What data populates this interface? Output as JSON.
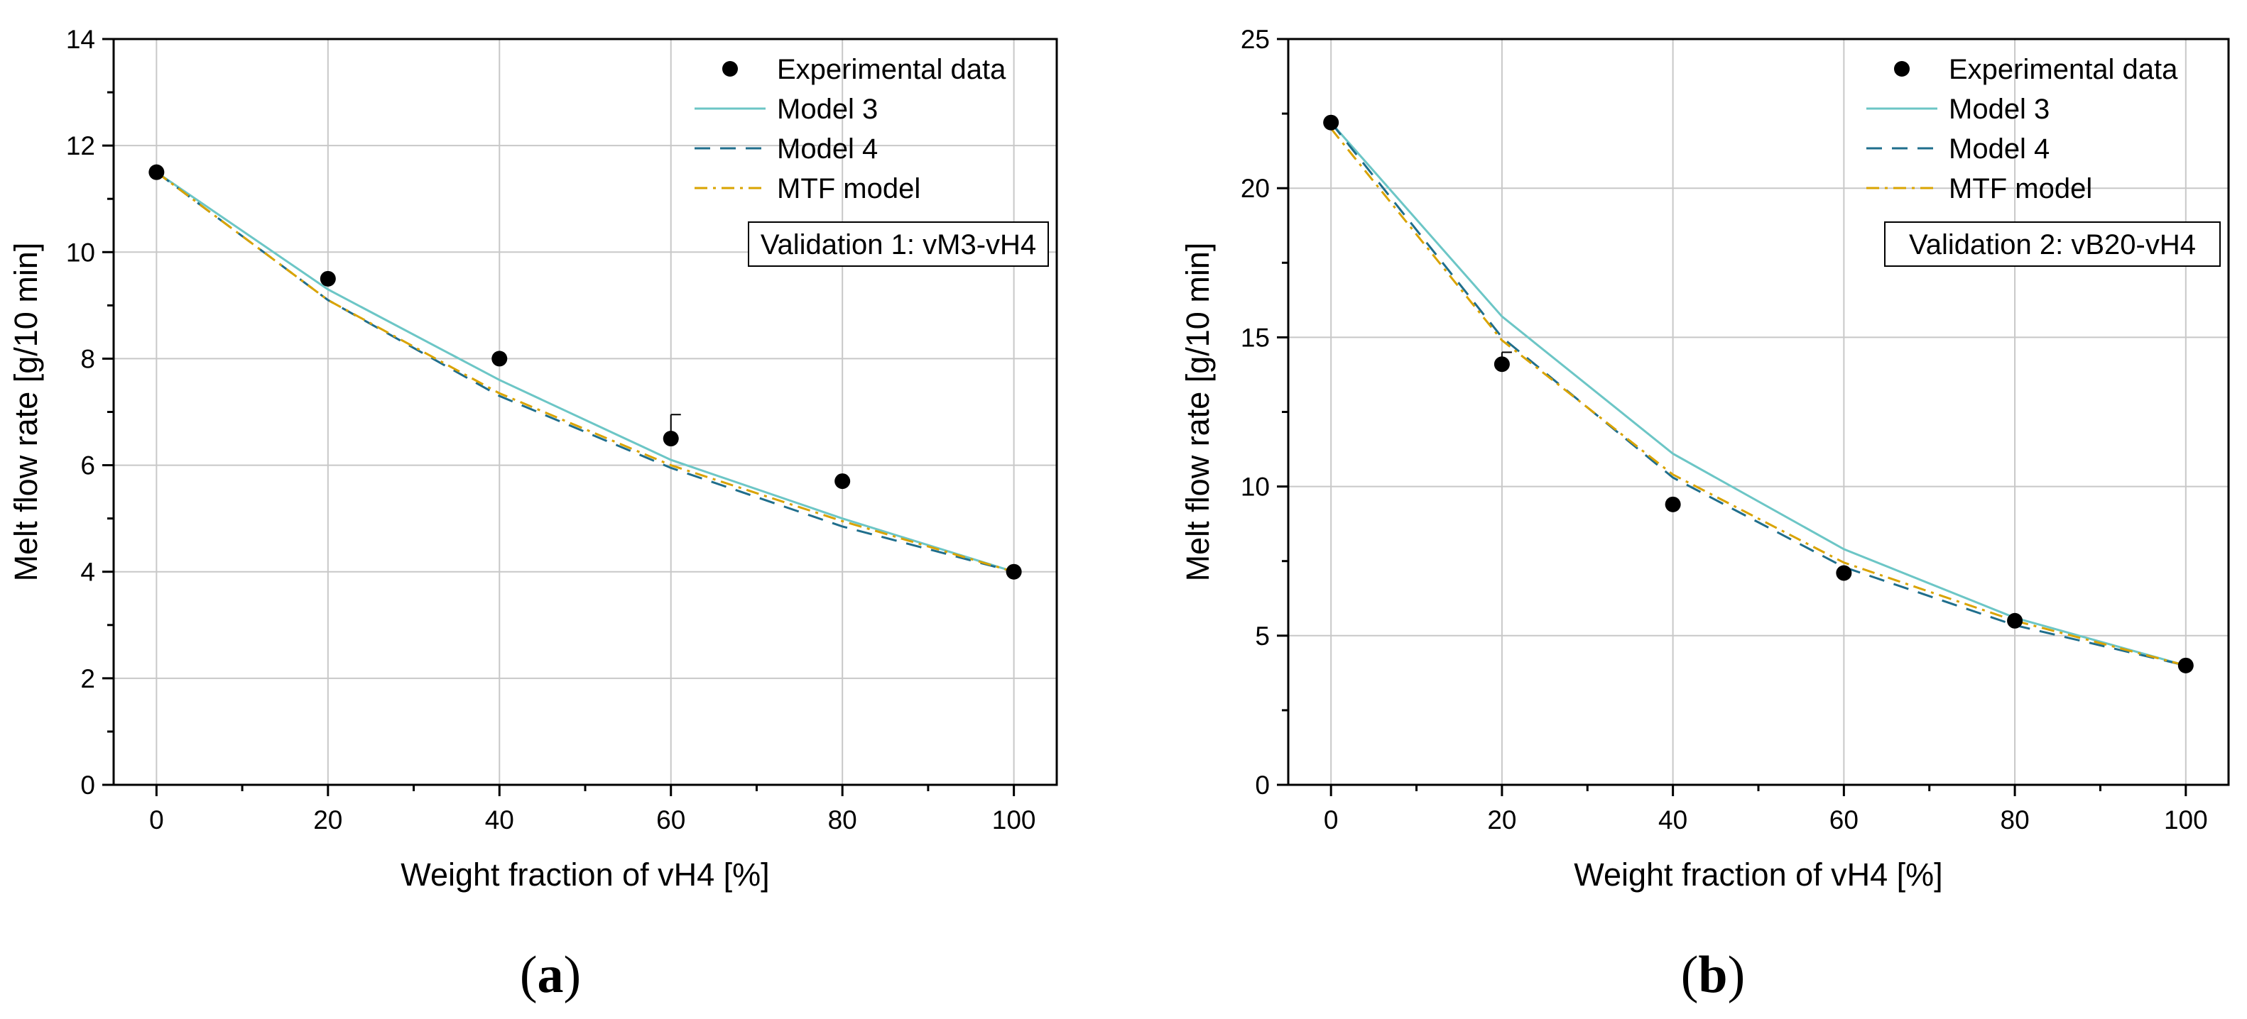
{
  "chart_data": [
    {
      "type": "line",
      "panel_label_open": "(",
      "panel_label_letter": "a",
      "panel_label_close": ")",
      "xlabel": "Weight fraction of vH4 [%]",
      "ylabel": "Melt flow rate [g/10 min]",
      "xlim": [
        -5,
        105
      ],
      "ylim": [
        0,
        14
      ],
      "xticks": [
        0,
        20,
        40,
        60,
        80,
        100
      ],
      "yticks": [
        0,
        2,
        4,
        6,
        8,
        10,
        12,
        14
      ],
      "grid": true,
      "legend_position": "top-right",
      "annotation": "Validation 1: vM3-vH4",
      "x": [
        0,
        20,
        40,
        60,
        80,
        100
      ],
      "series": [
        {
          "name": "Experimental data",
          "style": "scatter",
          "color": "#000000",
          "values": [
            11.5,
            9.5,
            8.0,
            6.5,
            5.7,
            4.0
          ],
          "errors": [
            0.05,
            0.1,
            0.05,
            0.45,
            0.05,
            0.05
          ]
        },
        {
          "name": "Model 3",
          "style": "solid",
          "color": "#6cc6c6",
          "values": [
            11.5,
            9.3,
            7.6,
            6.1,
            5.0,
            4.0
          ]
        },
        {
          "name": "Model 4",
          "style": "dashed",
          "color": "#1f6e8c",
          "values": [
            11.5,
            9.1,
            7.3,
            5.95,
            4.85,
            4.0
          ]
        },
        {
          "name": "MTF model",
          "style": "dashdot",
          "color": "#d9a300",
          "values": [
            11.5,
            9.1,
            7.35,
            6.0,
            4.95,
            4.0
          ]
        }
      ]
    },
    {
      "type": "line",
      "panel_label_open": "(",
      "panel_label_letter": "b",
      "panel_label_close": ")",
      "xlabel": "Weight fraction of vH4 [%]",
      "ylabel": "Melt flow rate [g/10 min]",
      "xlim": [
        -5,
        105
      ],
      "ylim": [
        0,
        25
      ],
      "xticks": [
        0,
        20,
        40,
        60,
        80,
        100
      ],
      "yticks": [
        0,
        5,
        10,
        15,
        20,
        25
      ],
      "grid": true,
      "legend_position": "top-right",
      "annotation": "Validation 2: vB20-vH4",
      "x": [
        0,
        20,
        40,
        60,
        80,
        100
      ],
      "series": [
        {
          "name": "Experimental data",
          "style": "scatter",
          "color": "#000000",
          "values": [
            22.2,
            14.1,
            9.4,
            7.1,
            5.5,
            4.0
          ],
          "errors": [
            0.1,
            0.4,
            0.1,
            0.1,
            0.1,
            0.1
          ]
        },
        {
          "name": "Model 3",
          "style": "solid",
          "color": "#6cc6c6",
          "values": [
            22.2,
            15.7,
            11.1,
            7.9,
            5.6,
            4.0
          ]
        },
        {
          "name": "Model 4",
          "style": "dashed",
          "color": "#1f6e8c",
          "values": [
            22.2,
            15.0,
            10.3,
            7.3,
            5.35,
            4.0
          ]
        },
        {
          "name": "MTF model",
          "style": "dashdot",
          "color": "#d9a300",
          "values": [
            22.0,
            14.9,
            10.4,
            7.45,
            5.5,
            4.0
          ]
        }
      ]
    }
  ]
}
